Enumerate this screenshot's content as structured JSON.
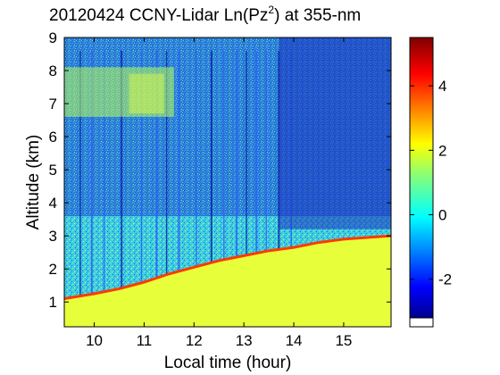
{
  "chart_data": {
    "type": "heatmap",
    "title_parts": {
      "prefix": "20120424 CCNY-Lidar Ln(Pz",
      "sup": "2",
      "suffix": ") at 355-nm"
    },
    "xlabel": "Local time (hour)",
    "ylabel": "Altitude (km)",
    "xlim": [
      9.4,
      15.95
    ],
    "ylim": [
      0.25,
      9
    ],
    "xticks": [
      10,
      11,
      12,
      13,
      14,
      15
    ],
    "yticks": [
      1,
      2,
      3,
      4,
      5,
      6,
      7,
      8,
      9
    ],
    "colorbar": {
      "range": [
        -3.2,
        5.5
      ],
      "ticks": [
        -2,
        0,
        2,
        4
      ],
      "colormap": "jet"
    },
    "features": {
      "boundary_layer_top_km": [
        {
          "t": 9.4,
          "z": 1.1
        },
        {
          "t": 10.0,
          "z": 1.25
        },
        {
          "t": 10.5,
          "z": 1.4
        },
        {
          "t": 11.0,
          "z": 1.6
        },
        {
          "t": 11.5,
          "z": 1.85
        },
        {
          "t": 12.0,
          "z": 2.05
        },
        {
          "t": 12.5,
          "z": 2.25
        },
        {
          "t": 13.0,
          "z": 2.4
        },
        {
          "t": 13.5,
          "z": 2.55
        },
        {
          "t": 14.0,
          "z": 2.65
        },
        {
          "t": 14.5,
          "z": 2.8
        },
        {
          "t": 15.0,
          "z": 2.9
        },
        {
          "t": 15.95,
          "z": 3.0
        }
      ],
      "cirrus_layer_km": {
        "t_start": 9.4,
        "t_end": 11.6,
        "z_bottom": 6.6,
        "z_top": 8.1
      },
      "rain_streaks_t": [
        9.72,
        9.95,
        10.2,
        10.55,
        10.95,
        11.25,
        11.45,
        11.7,
        12.05,
        12.35,
        12.6,
        12.85,
        13.05,
        13.25,
        13.45,
        13.7,
        13.95
      ]
    }
  }
}
